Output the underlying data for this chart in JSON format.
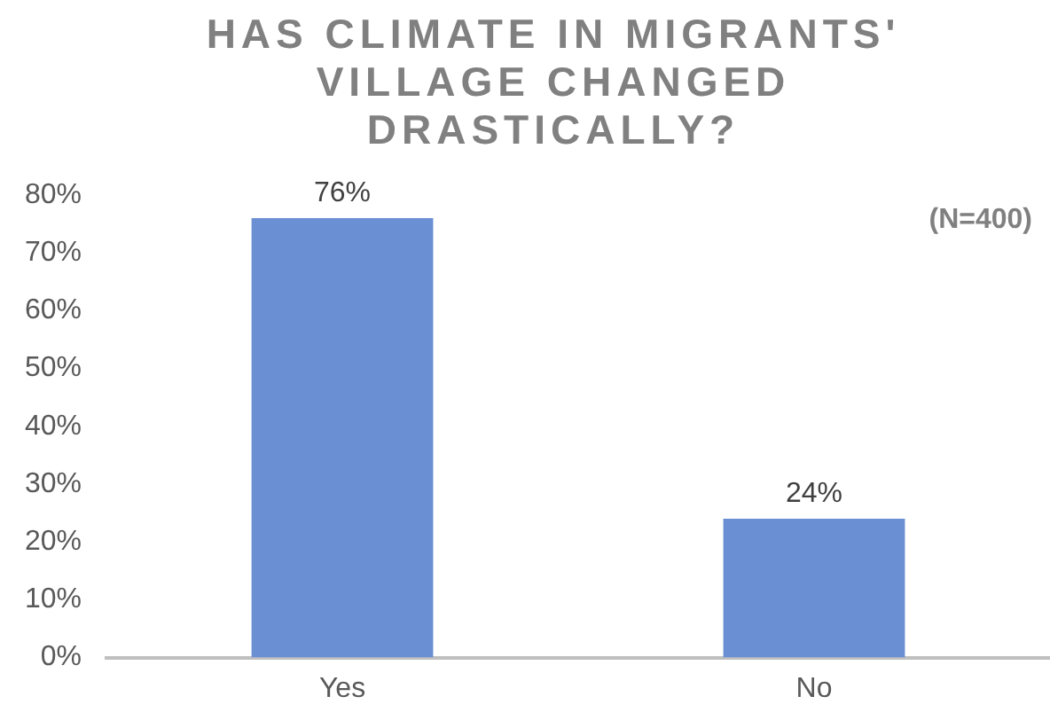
{
  "chart_data": {
    "type": "bar",
    "title": "HAS CLIMATE IN MIGRANTS' VILLAGE CHANGED DRASTICALLY?",
    "categories": [
      "Yes",
      "No"
    ],
    "values": [
      76,
      24
    ],
    "value_labels": [
      "76%",
      "24%"
    ],
    "color": "#6a8fd2",
    "ylim": [
      0,
      80
    ],
    "yticks": [
      {
        "value": 0,
        "label": "0%"
      },
      {
        "value": 10,
        "label": "10%"
      },
      {
        "value": 20,
        "label": "20%"
      },
      {
        "value": 30,
        "label": "30%"
      },
      {
        "value": 40,
        "label": "40%"
      },
      {
        "value": 50,
        "label": "50%"
      },
      {
        "value": 60,
        "label": "60%"
      },
      {
        "value": 70,
        "label": "70%"
      },
      {
        "value": 80,
        "label": "80%"
      }
    ],
    "grid": false,
    "legend": false,
    "annotations": [
      "(N=400)"
    ]
  }
}
